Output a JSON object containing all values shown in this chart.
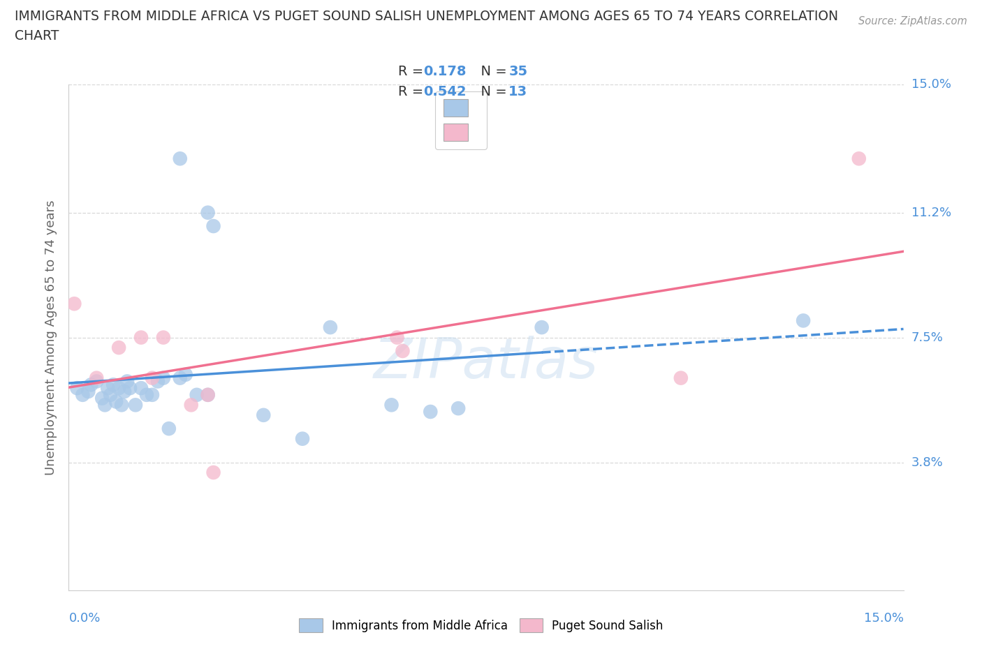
{
  "title_line1": "IMMIGRANTS FROM MIDDLE AFRICA VS PUGET SOUND SALISH UNEMPLOYMENT AMONG AGES 65 TO 74 YEARS CORRELATION",
  "title_line2": "CHART",
  "source_text": "Source: ZipAtlas.com",
  "ylabel": "Unemployment Among Ages 65 to 74 years",
  "xlim": [
    0.0,
    15.0
  ],
  "ylim": [
    0.0,
    15.0
  ],
  "ytick_labels": [
    "3.8%",
    "7.5%",
    "11.2%",
    "15.0%"
  ],
  "ytick_values": [
    3.8,
    7.5,
    11.2,
    15.0
  ],
  "blue_scatter_color": "#a8c8e8",
  "pink_scatter_color": "#f4b8cc",
  "blue_line_color": "#4a90d9",
  "pink_line_color": "#f07090",
  "tick_label_color": "#4a90d9",
  "legend_R_blue": "0.178",
  "legend_N_blue": "35",
  "legend_R_pink": "0.542",
  "legend_N_pink": "13",
  "blue_scatter_x": [
    0.15,
    0.25,
    0.35,
    0.4,
    0.5,
    0.6,
    0.65,
    0.7,
    0.75,
    0.8,
    0.85,
    0.9,
    0.95,
    1.0,
    1.05,
    1.1,
    1.2,
    1.3,
    1.4,
    1.5,
    1.6,
    1.7,
    1.8,
    2.0,
    2.1,
    2.3,
    2.5,
    3.5,
    4.2,
    4.7,
    5.8,
    6.5,
    7.0,
    8.5,
    13.2
  ],
  "blue_scatter_y": [
    6.0,
    5.8,
    5.9,
    6.1,
    6.2,
    5.7,
    5.5,
    6.0,
    5.8,
    6.1,
    5.6,
    6.0,
    5.5,
    5.9,
    6.2,
    6.0,
    5.5,
    6.0,
    5.8,
    5.8,
    6.2,
    6.3,
    4.8,
    6.3,
    6.4,
    5.8,
    5.8,
    5.2,
    4.5,
    7.8,
    5.5,
    5.3,
    5.4,
    7.8,
    8.0
  ],
  "pink_scatter_x": [
    0.1,
    0.5,
    0.9,
    1.3,
    1.5,
    1.7,
    2.2,
    2.5,
    2.6,
    5.9,
    6.0,
    11.0,
    14.2
  ],
  "pink_scatter_y": [
    8.5,
    6.3,
    7.2,
    7.5,
    6.3,
    7.5,
    5.5,
    5.8,
    3.5,
    7.5,
    7.1,
    6.3,
    12.8
  ],
  "blue_high_points_x": [
    2.0,
    2.5,
    2.6
  ],
  "blue_high_points_y": [
    12.8,
    11.2,
    10.8
  ],
  "watermark": "ZIPatlas",
  "background_color": "#ffffff",
  "grid_color": "#d8d8d8"
}
